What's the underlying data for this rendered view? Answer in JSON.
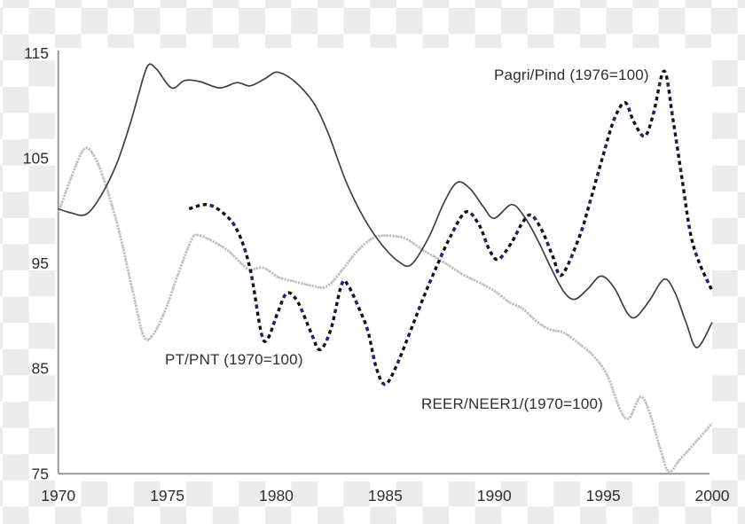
{
  "figure": {
    "background": {
      "checker_light": "#ffffff",
      "checker_dark": "#ebebeb",
      "plot_fill": "#ffffff"
    },
    "axis_color": "#8f8f8f",
    "text_color": "#2e2e2e"
  },
  "chart_data": {
    "type": "line",
    "title": "",
    "xlabel": "",
    "ylabel": "",
    "xlim": [
      1970,
      2000
    ],
    "ylim": [
      75,
      115
    ],
    "x_ticks": [
      "1970",
      "1975",
      "1980",
      "1985",
      "1990",
      "1995",
      "2000"
    ],
    "x_tick_values": [
      1970,
      1975,
      1980,
      1985,
      1990,
      1995,
      2000
    ],
    "y_ticks": [
      "75",
      "85",
      "95",
      "105",
      "115"
    ],
    "y_tick_values": [
      75,
      85,
      95,
      105,
      115
    ],
    "grid": false,
    "legend_position": "inline-annotations",
    "series": [
      {
        "name": "PT/PNT (1970=100)",
        "style": "solid",
        "color": "#3f3f3f",
        "points": [
          [
            1970,
            100.2
          ],
          [
            1970.6,
            99.8
          ],
          [
            1971.3,
            99.7
          ],
          [
            1972,
            101.6
          ],
          [
            1972.7,
            104.6
          ],
          [
            1973.3,
            108.3
          ],
          [
            1973.7,
            111.2
          ],
          [
            1974.1,
            113.8
          ],
          [
            1974.5,
            113.5
          ],
          [
            1975.2,
            111.7
          ],
          [
            1975.8,
            112.4
          ],
          [
            1976.5,
            112.3
          ],
          [
            1977.4,
            111.7
          ],
          [
            1978.2,
            112.2
          ],
          [
            1978.8,
            111.9
          ],
          [
            1979.5,
            112.6
          ],
          [
            1980,
            113.2
          ],
          [
            1980.6,
            112.7
          ],
          [
            1981.2,
            111.6
          ],
          [
            1981.8,
            110.0
          ],
          [
            1982.4,
            107.3
          ],
          [
            1983.2,
            102.8
          ],
          [
            1984,
            99.4
          ],
          [
            1984.8,
            96.9
          ],
          [
            1985.6,
            95.2
          ],
          [
            1986.2,
            94.9
          ],
          [
            1987,
            97.5
          ],
          [
            1987.7,
            100.8
          ],
          [
            1988.3,
            102.7
          ],
          [
            1988.9,
            102.1
          ],
          [
            1989.5,
            100.4
          ],
          [
            1990,
            99.3
          ],
          [
            1990.8,
            100.6
          ],
          [
            1991.4,
            99.4
          ],
          [
            1992,
            97.2
          ],
          [
            1992.6,
            94.6
          ],
          [
            1993.2,
            92.3
          ],
          [
            1993.7,
            91.6
          ],
          [
            1994.3,
            92.6
          ],
          [
            1994.9,
            93.8
          ],
          [
            1995.5,
            92.7
          ],
          [
            1996.1,
            90.3
          ],
          [
            1996.5,
            89.9
          ],
          [
            1997.1,
            91.4
          ],
          [
            1997.8,
            93.5
          ],
          [
            1998.3,
            92.2
          ],
          [
            1998.8,
            89.4
          ],
          [
            1999.3,
            87.0
          ],
          [
            2000,
            89.4
          ]
        ]
      },
      {
        "name": "REER/NEER1/(1970=100)",
        "style": "speckled",
        "color": "#c8c8c8",
        "accent": "#b2b2b2",
        "points": [
          [
            1970,
            99.8
          ],
          [
            1970.6,
            103.2
          ],
          [
            1971.2,
            105.9
          ],
          [
            1971.7,
            105.0
          ],
          [
            1972.2,
            102.3
          ],
          [
            1972.8,
            98.0
          ],
          [
            1973.4,
            92.5
          ],
          [
            1973.9,
            88.2
          ],
          [
            1974.3,
            88.1
          ],
          [
            1974.9,
            90.5
          ],
          [
            1975.5,
            94.0
          ],
          [
            1976.1,
            97.2
          ],
          [
            1976.4,
            97.7
          ],
          [
            1977.1,
            97.1
          ],
          [
            1977.8,
            96.2
          ],
          [
            1978.4,
            95.0
          ],
          [
            1978.8,
            94.4
          ],
          [
            1979.4,
            94.6
          ],
          [
            1980.1,
            93.7
          ],
          [
            1980.8,
            93.3
          ],
          [
            1981.6,
            92.9
          ],
          [
            1982.3,
            92.8
          ],
          [
            1983,
            94.3
          ],
          [
            1983.6,
            95.9
          ],
          [
            1984.2,
            97.1
          ],
          [
            1984.7,
            97.6
          ],
          [
            1985.4,
            97.6
          ],
          [
            1986,
            97.3
          ],
          [
            1986.7,
            96.3
          ],
          [
            1987.3,
            95.6
          ],
          [
            1988,
            94.7
          ],
          [
            1988.6,
            93.9
          ],
          [
            1989.3,
            93.2
          ],
          [
            1990,
            92.4
          ],
          [
            1990.7,
            91.3
          ],
          [
            1991.3,
            90.7
          ],
          [
            1992,
            89.4
          ],
          [
            1992.6,
            88.7
          ],
          [
            1993.2,
            88.4
          ],
          [
            1994,
            87.2
          ],
          [
            1994.6,
            86.1
          ],
          [
            1995.2,
            84.3
          ],
          [
            1995.8,
            81.0
          ],
          [
            1996.2,
            80.3
          ],
          [
            1996.7,
            82.3
          ],
          [
            1997.1,
            81.0
          ],
          [
            1997.6,
            77.5
          ],
          [
            1998,
            75.2
          ],
          [
            1998.5,
            76.3
          ],
          [
            1999.2,
            77.9
          ],
          [
            2000,
            79.8
          ]
        ]
      },
      {
        "name": "Pagri/Pind (1976=100)",
        "style": "dashed",
        "color": "#12121a",
        "accent": "#23237e",
        "points": [
          [
            1976,
            100.2
          ],
          [
            1976.8,
            100.6
          ],
          [
            1977.5,
            99.9
          ],
          [
            1978.2,
            98.2
          ],
          [
            1978.8,
            94.5
          ],
          [
            1979.3,
            88.5
          ],
          [
            1979.6,
            87.8
          ],
          [
            1980.1,
            90.5
          ],
          [
            1980.5,
            92.2
          ],
          [
            1981,
            91.3
          ],
          [
            1981.6,
            88.4
          ],
          [
            1982,
            86.8
          ],
          [
            1982.5,
            88.7
          ],
          [
            1983,
            93.0
          ],
          [
            1983.3,
            92.9
          ],
          [
            1983.8,
            90.7
          ],
          [
            1984.2,
            88.6
          ],
          [
            1984.6,
            85.0
          ],
          [
            1985,
            83.5
          ],
          [
            1985.5,
            85.2
          ],
          [
            1986.2,
            88.8
          ],
          [
            1986.8,
            92.0
          ],
          [
            1987.4,
            94.9
          ],
          [
            1988,
            97.6
          ],
          [
            1988.7,
            99.9
          ],
          [
            1989.3,
            98.7
          ],
          [
            1989.8,
            96.2
          ],
          [
            1990.2,
            95.4
          ],
          [
            1990.8,
            97.0
          ],
          [
            1991.3,
            98.9
          ],
          [
            1991.7,
            99.6
          ],
          [
            1992.2,
            98.1
          ],
          [
            1992.7,
            95.6
          ],
          [
            1993.1,
            93.9
          ],
          [
            1993.9,
            97.5
          ],
          [
            1994.4,
            100.9
          ],
          [
            1995,
            105.3
          ],
          [
            1995.5,
            108.7
          ],
          [
            1996,
            110.3
          ],
          [
            1996.4,
            108.5
          ],
          [
            1996.9,
            107.1
          ],
          [
            1997.3,
            109.2
          ],
          [
            1997.8,
            113.3
          ],
          [
            1998.2,
            108.7
          ],
          [
            1998.6,
            103.3
          ],
          [
            1999,
            97.9
          ],
          [
            1999.4,
            95.1
          ],
          [
            2000,
            92.4
          ]
        ]
      }
    ],
    "annotations": [
      {
        "text": "Pagri/Pind (1976=100)",
        "near_year": 1990,
        "near_value": 112.6
      },
      {
        "text": "PT/PNT (1970=100)",
        "near_year": 1975,
        "near_value": 85.5
      },
      {
        "text": "REER/NEER1/(1970=100)",
        "near_year": 1986.7,
        "near_value": 81.3
      }
    ]
  }
}
